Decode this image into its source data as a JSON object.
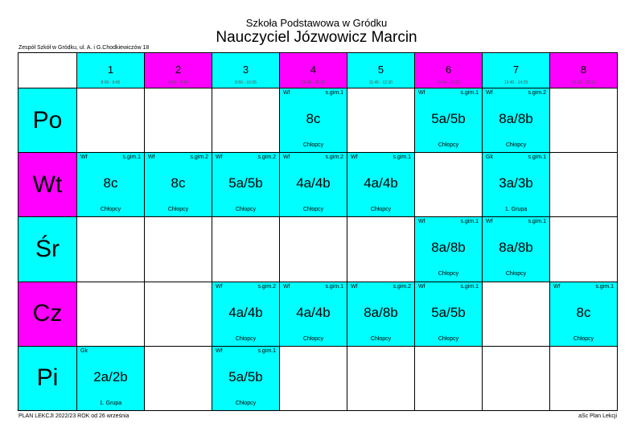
{
  "header": {
    "school": "Szkoła Podstawowa w Gródku",
    "teacher": "Nauczyciel Józwowicz Marcin",
    "address": "Zespół Szkół w Gródku, ul. A. i G.Chodkiewiczów 18"
  },
  "footer": {
    "left": "PLAN LEKCJI  2022/23  ROK od 26 września",
    "right": "aSc Plan Lekcji"
  },
  "colors": {
    "cyan": "#00ffff",
    "magenta": "#ff00ff"
  },
  "periods": [
    {
      "num": "1",
      "time": "8:00 - 8:45",
      "color": "cyan"
    },
    {
      "num": "2",
      "time": "8:50 - 9:40",
      "color": "magenta"
    },
    {
      "num": "3",
      "time": "9:50 - 10:35",
      "color": "cyan"
    },
    {
      "num": "4",
      "time": "10:45 - 11:30",
      "color": "magenta"
    },
    {
      "num": "5",
      "time": "11:45 - 12:30",
      "color": "cyan"
    },
    {
      "num": "6",
      "time": "12:40 - 13:25",
      "color": "magenta"
    },
    {
      "num": "7",
      "time": "13:40 - 14:25",
      "color": "cyan"
    },
    {
      "num": "8",
      "time": "14:30 - 15:15",
      "color": "magenta"
    }
  ],
  "days": [
    {
      "name": "Po",
      "color": "cyan",
      "cells": [
        null,
        null,
        null,
        {
          "subject": "Wf",
          "room": "s.gim.1",
          "class": "8c",
          "group": "Chłopcy"
        },
        null,
        {
          "subject": "Wf",
          "room": "s.gim.1",
          "class": "5a/5b",
          "group": "Chłopcy"
        },
        {
          "subject": "Wf",
          "room": "s.gim.2",
          "class": "8a/8b",
          "group": "Chłopcy"
        },
        null
      ]
    },
    {
      "name": "Wt",
      "color": "magenta",
      "cells": [
        {
          "subject": "Wf",
          "room": "s.gim.1",
          "class": "8c",
          "group": "Chłopcy"
        },
        {
          "subject": "Wf",
          "room": "s.gim.2",
          "class": "8c",
          "group": "Chłopcy"
        },
        {
          "subject": "Wf",
          "room": "s.gim.2",
          "class": "5a/5b",
          "group": "Chłopcy"
        },
        {
          "subject": "Wf",
          "room": "s.gim.2",
          "class": "4a/4b",
          "group": "Chłopcy"
        },
        {
          "subject": "Wf",
          "room": "s.gim.1",
          "class": "4a/4b",
          "group": "Chłopcy"
        },
        null,
        {
          "subject": "Gk",
          "room": "s.gim.1",
          "class": "3a/3b",
          "group": "1. Grupa"
        },
        null
      ]
    },
    {
      "name": "Śr",
      "color": "cyan",
      "cells": [
        null,
        null,
        null,
        null,
        null,
        {
          "subject": "Wf",
          "room": "s.gim.1",
          "class": "8a/8b",
          "group": "Chłopcy"
        },
        {
          "subject": "Wf",
          "room": "s.gim.1",
          "class": "8a/8b",
          "group": "Chłopcy"
        },
        null
      ]
    },
    {
      "name": "Cz",
      "color": "magenta",
      "cells": [
        null,
        null,
        {
          "subject": "Wf",
          "room": "s.gim.2",
          "class": "4a/4b",
          "group": "Chłopcy"
        },
        {
          "subject": "Wf",
          "room": "s.gim.1",
          "class": "4a/4b",
          "group": "Chłopcy"
        },
        {
          "subject": "Wf",
          "room": "s.gim.2",
          "class": "8a/8b",
          "group": "Chłopcy"
        },
        {
          "subject": "Wf",
          "room": "s.gim.1",
          "class": "5a/5b",
          "group": "Chłopcy"
        },
        null,
        {
          "subject": "Wf",
          "room": "s.gim.1",
          "class": "8c",
          "group": "Chłopcy"
        }
      ]
    },
    {
      "name": "Pi",
      "color": "cyan",
      "cells": [
        {
          "subject": "Gk",
          "room": "",
          "class": "2a/2b",
          "group": "1. Grupa"
        },
        null,
        {
          "subject": "Wf",
          "room": "s.gim.1",
          "class": "5a/5b",
          "group": "Chłopcy"
        },
        null,
        null,
        null,
        null,
        null
      ]
    }
  ]
}
